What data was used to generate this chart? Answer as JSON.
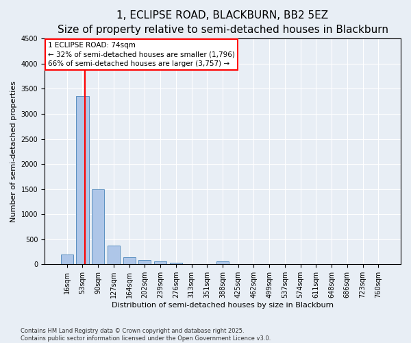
{
  "title": "1, ECLIPSE ROAD, BLACKBURN, BB2 5EZ",
  "subtitle": "Size of property relative to semi-detached houses in Blackburn",
  "xlabel": "Distribution of semi-detached houses by size in Blackburn",
  "ylabel": "Number of semi-detached properties",
  "categories": [
    "16sqm",
    "53sqm",
    "90sqm",
    "127sqm",
    "164sqm",
    "202sqm",
    "239sqm",
    "276sqm",
    "313sqm",
    "351sqm",
    "388sqm",
    "425sqm",
    "462sqm",
    "499sqm",
    "537sqm",
    "574sqm",
    "611sqm",
    "648sqm",
    "686sqm",
    "723sqm",
    "760sqm"
  ],
  "values": [
    200,
    3350,
    1500,
    370,
    140,
    90,
    55,
    30,
    0,
    0,
    55,
    0,
    0,
    0,
    0,
    0,
    0,
    0,
    0,
    0,
    0
  ],
  "bar_color": "#aec6e8",
  "bar_edge_color": "#5a8fc0",
  "vline_x": 1.15,
  "annotation_text_line1": "1 ECLIPSE ROAD: 74sqm",
  "annotation_text_line2": "← 32% of semi-detached houses are smaller (1,796)",
  "annotation_text_line3": "66% of semi-detached houses are larger (3,757) →",
  "annotation_box_color": "white",
  "annotation_box_edge_color": "red",
  "vline_color": "red",
  "ylim": [
    0,
    4500
  ],
  "yticks": [
    0,
    500,
    1000,
    1500,
    2000,
    2500,
    3000,
    3500,
    4000,
    4500
  ],
  "background_color": "#e8eef5",
  "footnote_line1": "Contains HM Land Registry data © Crown copyright and database right 2025.",
  "footnote_line2": "Contains public sector information licensed under the Open Government Licence v3.0.",
  "title_fontsize": 11,
  "subtitle_fontsize": 9,
  "xlabel_fontsize": 8,
  "ylabel_fontsize": 8,
  "tick_fontsize": 7,
  "annot_fontsize": 7.5
}
